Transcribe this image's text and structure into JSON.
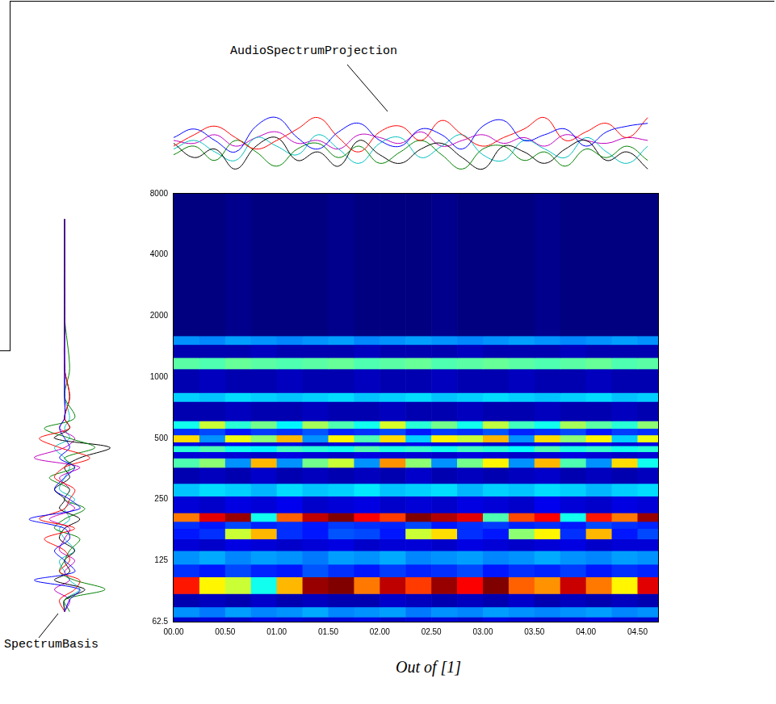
{
  "chart_data": [
    {
      "type": "heatmap",
      "log": "y",
      "grid": false,
      "xlim": [
        0,
        4.7
      ],
      "xticks": [
        {
          "value": 0,
          "label": "00.00"
        },
        {
          "value": 0.5,
          "label": "00.50"
        },
        {
          "value": 1,
          "label": "01.00"
        },
        {
          "value": 1.5,
          "label": "01.50"
        },
        {
          "value": 2,
          "label": "02.00"
        },
        {
          "value": 2.5,
          "label": "02.50"
        },
        {
          "value": 3,
          "label": "03.00"
        },
        {
          "value": 3.5,
          "label": "03.50"
        },
        {
          "value": 4,
          "label": "04.00"
        },
        {
          "value": 4.5,
          "label": "04.50"
        }
      ],
      "ylim": [
        62.5,
        8000
      ],
      "yticks": [
        62.5,
        125,
        250,
        500,
        1000,
        2000,
        4000,
        8000
      ],
      "x_bins": [
        0,
        0.25,
        0.5,
        0.75,
        1,
        1.25,
        1.5,
        1.75,
        2,
        2.25,
        2.5,
        2.75,
        3,
        3.25,
        3.5,
        3.75,
        4,
        4.25,
        4.5,
        4.75
      ],
      "y_bins": [
        62.5,
        66,
        74,
        86,
        104,
        120,
        140,
        160,
        180,
        195,
        215,
        260,
        300,
        360,
        400,
        430,
        460,
        480,
        520,
        560,
        610,
        760,
        840,
        1100,
        1250,
        1450,
        1600,
        8000
      ],
      "cells": [
        [
          14,
          15,
          14,
          16,
          15,
          14,
          15,
          16,
          14,
          15,
          15,
          14,
          16,
          15,
          14,
          15,
          16,
          15,
          14
        ],
        [
          30,
          28,
          31,
          29,
          30,
          32,
          29,
          30,
          31,
          28,
          30,
          29,
          31,
          30,
          29,
          30,
          31,
          29,
          30
        ],
        [
          12,
          13,
          12,
          14,
          12,
          13,
          12,
          12,
          14,
          13,
          12,
          13,
          12,
          14,
          12,
          13,
          12,
          13,
          12
        ],
        [
          78,
          60,
          55,
          40,
          65,
          88,
          90,
          70,
          85,
          75,
          88,
          80,
          90,
          72,
          68,
          84,
          70,
          60,
          82
        ],
        [
          22,
          20,
          24,
          21,
          20,
          25,
          22,
          20,
          23,
          21,
          22,
          24,
          20,
          22,
          21,
          23,
          20,
          22,
          21
        ],
        [
          30,
          32,
          29,
          31,
          30,
          28,
          31,
          30,
          32,
          29,
          30,
          31,
          29,
          30,
          32,
          30,
          29,
          31,
          30
        ],
        [
          15,
          14,
          16,
          15,
          14,
          15,
          16,
          14,
          15,
          15,
          14,
          16,
          15,
          14,
          15,
          16,
          14,
          15,
          15
        ],
        [
          20,
          22,
          55,
          65,
          22,
          20,
          25,
          24,
          20,
          55,
          62,
          22,
          20,
          50,
          60,
          22,
          65,
          20,
          24
        ],
        [
          22,
          20,
          24,
          21,
          22,
          20,
          23,
          22,
          21,
          24,
          20,
          22,
          23,
          21,
          22,
          20,
          24,
          22,
          21
        ],
        [
          70,
          82,
          88,
          40,
          72,
          85,
          90,
          80,
          75,
          90,
          86,
          82,
          45,
          74,
          80,
          40,
          78,
          70,
          88
        ],
        [
          15,
          14,
          16,
          15,
          17,
          14,
          15,
          16,
          14,
          15,
          14,
          16,
          15,
          14,
          17,
          15,
          14,
          16,
          15
        ],
        [
          34,
          36,
          35,
          33,
          36,
          34,
          35,
          37,
          34,
          35,
          36,
          33,
          35,
          34,
          36,
          35,
          33,
          35,
          36
        ],
        [
          12,
          13,
          12,
          14,
          12,
          13,
          12,
          13,
          12,
          14,
          12,
          13,
          12,
          13,
          14,
          12,
          13,
          12,
          13
        ],
        [
          45,
          50,
          30,
          65,
          30,
          48,
          55,
          30,
          68,
          50,
          30,
          48,
          60,
          30,
          65,
          45,
          30,
          62,
          40
        ],
        [
          15,
          16,
          15,
          14,
          16,
          15,
          14,
          16,
          15,
          15,
          14,
          16,
          15,
          14,
          15,
          16,
          15,
          14,
          15
        ],
        [
          42,
          45,
          40,
          38,
          44,
          42,
          40,
          45,
          41,
          43,
          40,
          44,
          42,
          39,
          45,
          41,
          43,
          40,
          42
        ],
        [
          16,
          15,
          17,
          15,
          16,
          14,
          15,
          16,
          15,
          17,
          15,
          16,
          14,
          15,
          16,
          15,
          17,
          15,
          16
        ],
        [
          62,
          30,
          58,
          50,
          65,
          30,
          60,
          45,
          62,
          35,
          60,
          55,
          65,
          30,
          62,
          50,
          60,
          35,
          58
        ],
        [
          22,
          24,
          20,
          23,
          22,
          25,
          21,
          22,
          24,
          20,
          23,
          22,
          25,
          21,
          22,
          24,
          20,
          23,
          22
        ],
        [
          40,
          55,
          42,
          48,
          38,
          52,
          45,
          40,
          56,
          42,
          48,
          40,
          54,
          44,
          40,
          52,
          46,
          42,
          50
        ],
        [
          12,
          12,
          13,
          12,
          12,
          13,
          12,
          12,
          13,
          12,
          12,
          13,
          12,
          12,
          13,
          12,
          12,
          13,
          12
        ],
        [
          35,
          34,
          36,
          35,
          34,
          35,
          36,
          34,
          35,
          36,
          34,
          35,
          36,
          35,
          34,
          35,
          36,
          34,
          35
        ],
        [
          12,
          13,
          12,
          12,
          13,
          12,
          12,
          13,
          12,
          12,
          13,
          12,
          12,
          13,
          12,
          12,
          13,
          12,
          12
        ],
        [
          46,
          45,
          47,
          46,
          45,
          46,
          47,
          45,
          46,
          47,
          45,
          46,
          47,
          46,
          45,
          46,
          47,
          45,
          46
        ],
        [
          12,
          12,
          12,
          13,
          12,
          12,
          12,
          13,
          12,
          12,
          12,
          13,
          12,
          12,
          12,
          13,
          12,
          12,
          12
        ],
        [
          30,
          29,
          31,
          30,
          29,
          30,
          31,
          29,
          30,
          31,
          30,
          29,
          30,
          31,
          30,
          29,
          30,
          31,
          30
        ],
        [
          8,
          8,
          9,
          8,
          8,
          8,
          9,
          8,
          8,
          8,
          9,
          8,
          8,
          8,
          9,
          8,
          8,
          8,
          8
        ]
      ]
    },
    {
      "type": "line",
      "title": "AudioSpectrumProjection",
      "grid": false,
      "tick_labels": false,
      "xlim": [
        0,
        4.7
      ],
      "ylim": [
        -1.2,
        1.2
      ],
      "x": [
        0,
        0.2,
        0.4,
        0.6,
        0.8,
        1,
        1.2,
        1.4,
        1.6,
        1.8,
        2,
        2.2,
        2.4,
        2.6,
        2.8,
        3,
        3.2,
        3.4,
        3.6,
        3.8,
        4,
        4.2,
        4.4,
        4.6
      ],
      "series": [
        {
          "color": "#0000ff",
          "values": [
            0.2,
            0.5,
            0.1,
            -0.3,
            0.6,
            0.9,
            0.2,
            -0.2,
            0.4,
            0.7,
            0.1,
            -0.1,
            0.5,
            0.3,
            -0.2,
            0.6,
            0.8,
            0.1,
            0.3,
            0.5,
            -0.1,
            0.4,
            0.6,
            0.7
          ]
        },
        {
          "color": "#ff0000",
          "values": [
            -0.1,
            0.3,
            0.6,
            0.2,
            -0.2,
            0.1,
            0.5,
            0.9,
            0.2,
            -0.3,
            0.4,
            0.6,
            0.1,
            0.8,
            0.3,
            -0.1,
            0.2,
            0.5,
            0.9,
            0.1,
            0.4,
            0.7,
            0.2,
            0.9
          ]
        },
        {
          "color": "#008000",
          "values": [
            -0.4,
            -0.1,
            -0.6,
            0.1,
            -0.3,
            -0.8,
            -0.2,
            0.0,
            -0.5,
            -0.1,
            -0.7,
            -0.3,
            0.1,
            -0.4,
            -0.9,
            -0.2,
            -0.1,
            -0.6,
            -0.3,
            -0.8,
            -0.2,
            -0.5,
            -0.1,
            -0.6
          ]
        },
        {
          "color": "#000000",
          "values": [
            0.0,
            -0.5,
            -0.2,
            -0.9,
            -0.1,
            0.2,
            -0.6,
            -0.3,
            -0.8,
            0.1,
            -0.4,
            -0.7,
            -0.2,
            0.0,
            -0.5,
            -0.9,
            -0.1,
            -0.3,
            -0.7,
            -0.2,
            0.1,
            -0.6,
            -0.3,
            -0.9
          ]
        },
        {
          "color": "#00bfbf",
          "values": [
            -0.2,
            0.1,
            -0.3,
            -0.6,
            0.2,
            -0.1,
            -0.4,
            0.3,
            -0.2,
            -0.7,
            0.0,
            0.2,
            -0.5,
            -0.1,
            0.3,
            -0.4,
            -0.6,
            0.1,
            -0.2,
            -0.5,
            0.2,
            -0.3,
            -0.7,
            -0.1
          ]
        },
        {
          "color": "#bf00bf",
          "values": [
            0.1,
            0.0,
            0.3,
            -0.1,
            0.2,
            0.4,
            0.0,
            0.1,
            -0.2,
            0.3,
            0.2,
            0.0,
            0.4,
            -0.1,
            0.1,
            0.3,
            0.0,
            0.2,
            -0.1,
            0.3,
            0.1,
            0.0,
            0.2,
            0.1
          ]
        }
      ]
    },
    {
      "type": "line",
      "title": "SpectrumBasis",
      "orientation": "horizontal",
      "log": "y",
      "grid": false,
      "tick_labels": false,
      "xlim": [
        -1.2,
        1.2
      ],
      "ylim": [
        62.5,
        8000
      ],
      "y": [
        70,
        80,
        90,
        100,
        110,
        125,
        140,
        160,
        180,
        200,
        225,
        250,
        280,
        320,
        360,
        400,
        450,
        500,
        560,
        630,
        800,
        1100,
        2000,
        6000
      ],
      "series": [
        {
          "color": "#0000ff",
          "values": [
            0.0,
            0.1,
            0.3,
            -0.6,
            0.2,
            0.0,
            -0.2,
            0.1,
            0.0,
            -0.7,
            0.3,
            0.1,
            -0.2,
            0.0,
            0.2,
            -0.1,
            0.1,
            0.0,
            -0.1,
            0.0,
            0.0,
            0.0,
            0.0,
            0.0
          ]
        },
        {
          "color": "#ff0000",
          "values": [
            0.0,
            -0.1,
            0.2,
            0.3,
            -0.1,
            0.1,
            0.0,
            -0.4,
            0.2,
            -0.5,
            0.0,
            0.1,
            0.2,
            -0.2,
            0.0,
            0.5,
            -0.1,
            -0.5,
            0.1,
            0.0,
            0.1,
            0.0,
            0.0,
            0.0
          ]
        },
        {
          "color": "#008000",
          "values": [
            0.1,
            0.0,
            0.8,
            0.2,
            -0.1,
            0.0,
            0.1,
            0.3,
            -0.2,
            0.0,
            0.4,
            0.0,
            0.1,
            -0.3,
            0.2,
            0.0,
            0.6,
            0.1,
            -0.4,
            0.2,
            0.0,
            0.1,
            0.0,
            0.0
          ]
        },
        {
          "color": "#000000",
          "values": [
            0.0,
            0.0,
            0.4,
            -0.2,
            0.1,
            0.0,
            0.2,
            -0.1,
            0.0,
            0.3,
            -0.1,
            0.0,
            -0.2,
            0.1,
            0.0,
            0.3,
            0.9,
            -0.2,
            0.1,
            0.0,
            0.1,
            0.0,
            0.0,
            0.0
          ]
        },
        {
          "color": "#bf00bf",
          "values": [
            0.0,
            0.1,
            -0.2,
            0.1,
            0.0,
            0.2,
            -0.1,
            0.0,
            0.1,
            -0.3,
            0.2,
            0.0,
            0.1,
            -0.1,
            0.3,
            -0.6,
            0.0,
            0.2,
            -0.1,
            0.0,
            0.0,
            0.0,
            0.0,
            0.0
          ]
        },
        {
          "color": "#00bfbf",
          "values": [
            0.0,
            0.0,
            0.3,
            0.1,
            0.0,
            -0.1,
            0.2,
            0.0,
            -0.1,
            0.1,
            0.0,
            0.2,
            -0.1,
            0.0,
            0.1,
            0.0,
            -0.2,
            0.1,
            0.0,
            0.1,
            0.0,
            0.0,
            0.0,
            0.0
          ]
        }
      ]
    }
  ],
  "caption": "Out of [1]"
}
